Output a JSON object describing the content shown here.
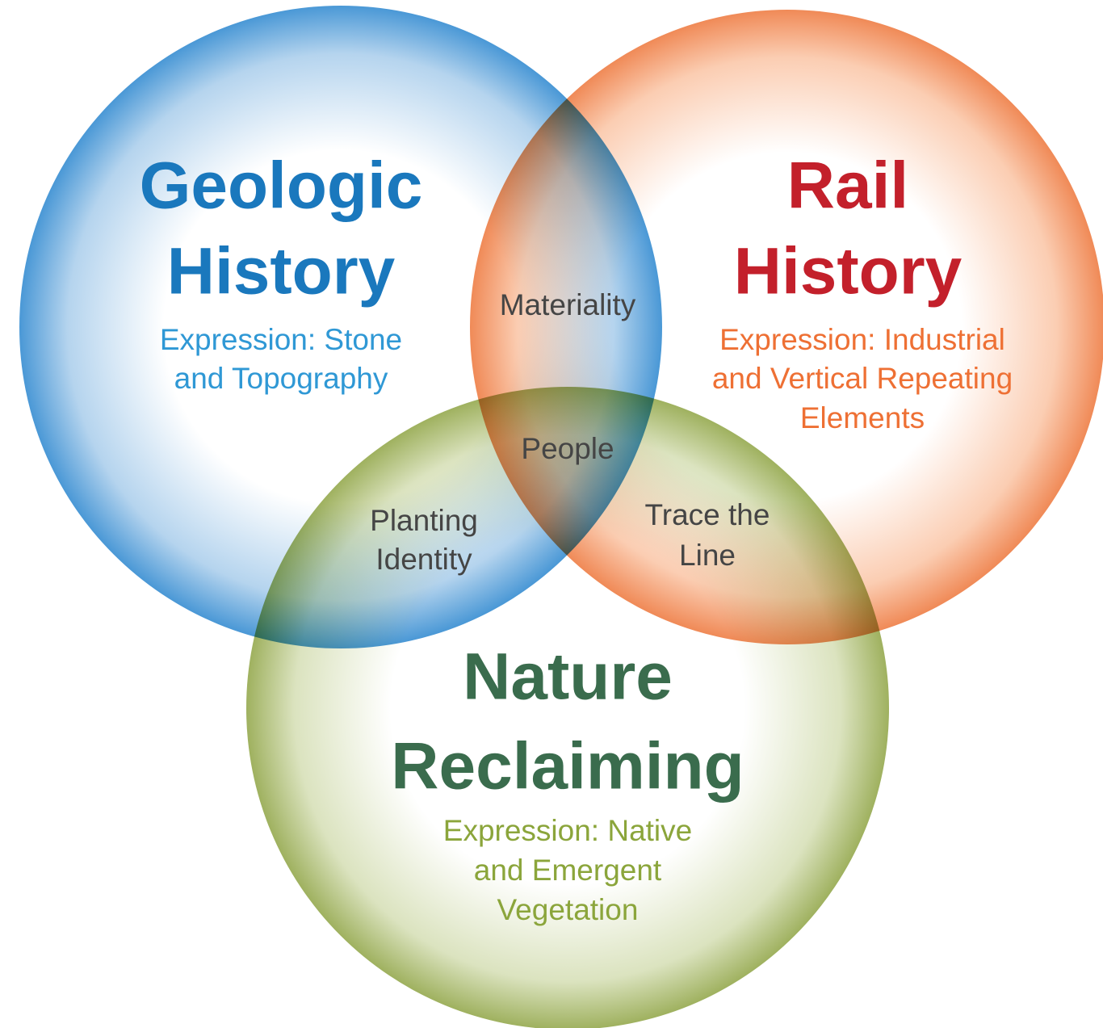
{
  "circles": [
    {
      "title": [
        "Geologic",
        "History"
      ],
      "expression": [
        "Expression: Stone",
        "and Topography"
      ]
    },
    {
      "title": [
        "Rail",
        "History"
      ],
      "expression": [
        "Expression: Industrial",
        "and Vertical Repeating",
        "Elements"
      ]
    },
    {
      "title": [
        "Nature",
        "Reclaiming"
      ],
      "expression": [
        "Expression: Native",
        "and Emergent",
        "Vegetation"
      ]
    }
  ],
  "overlaps": [
    {
      "lines": [
        "Materiality"
      ]
    },
    {
      "lines": [
        "People"
      ]
    },
    {
      "lines": [
        "Planting",
        "Identity"
      ]
    },
    {
      "lines": [
        "Trace the",
        "Line"
      ]
    }
  ]
}
